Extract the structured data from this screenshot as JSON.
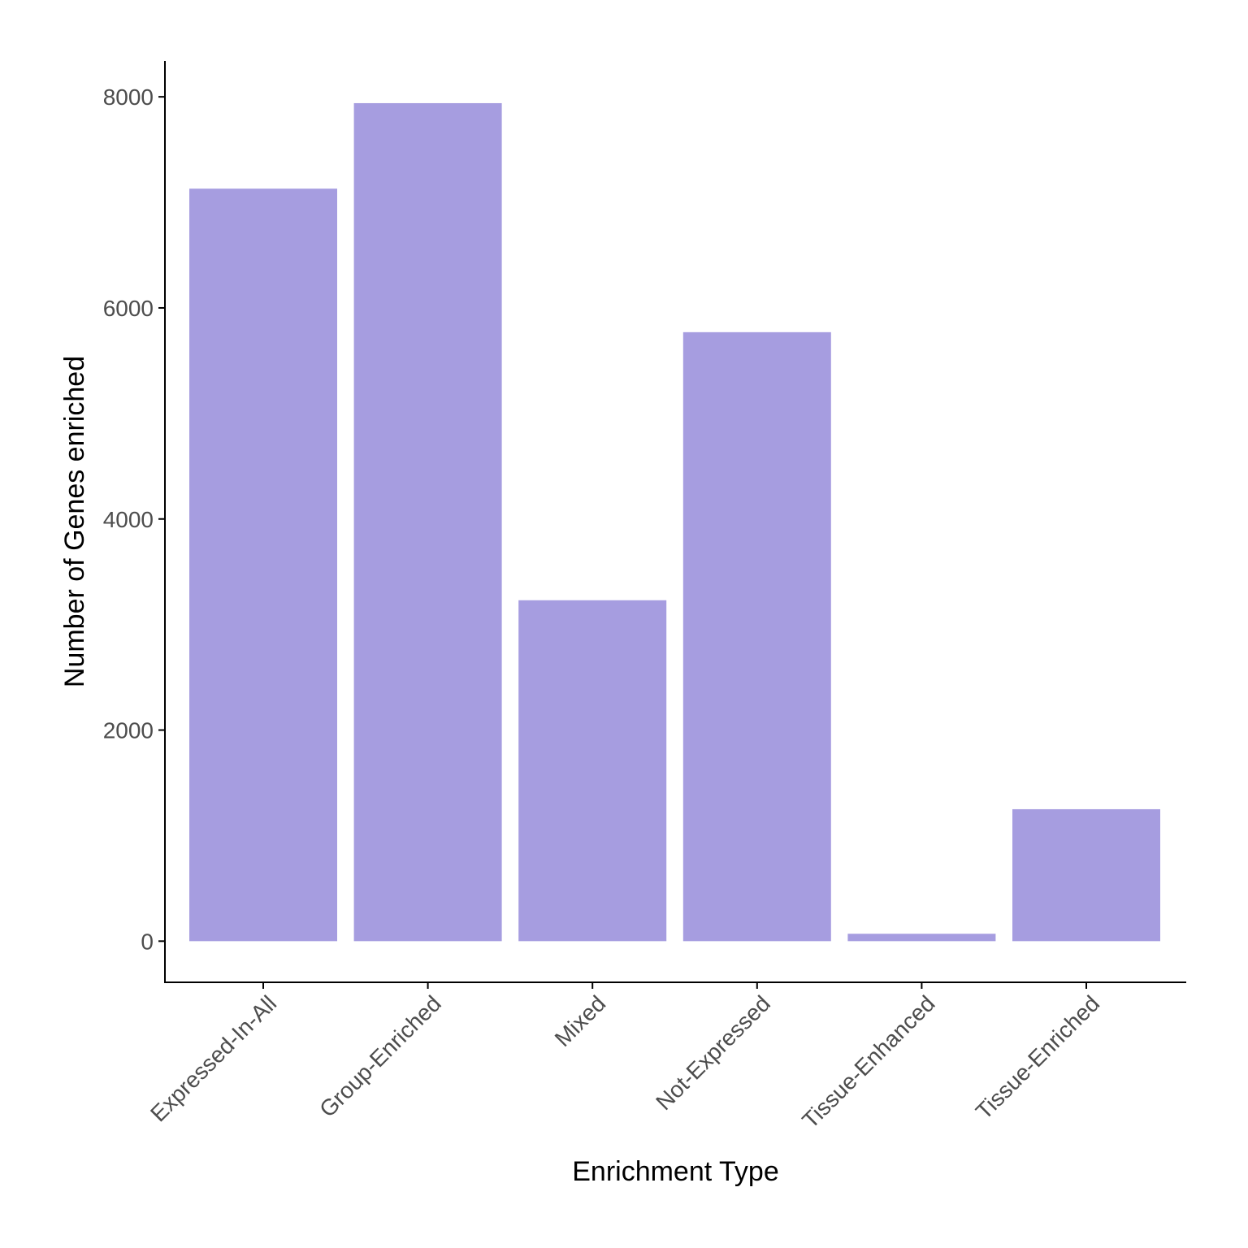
{
  "chart_data": {
    "type": "bar",
    "title": "",
    "xlabel": "Enrichment Type",
    "ylabel": "Number of Genes enriched",
    "categories": [
      "Expressed-In-All",
      "Group-Enriched",
      "Mixed",
      "Not-Expressed",
      "Tissue-Enhanced",
      "Tissue-Enriched"
    ],
    "values": [
      7130,
      7940,
      3230,
      5770,
      70,
      1250
    ],
    "ylim": [
      -390,
      8340
    ],
    "yticks": [
      0,
      2000,
      4000,
      6000,
      8000
    ],
    "ytick_labels": [
      "0",
      "2000",
      "4000",
      "6000",
      "8000"
    ],
    "bar_color": "#a69de0",
    "grid": false,
    "legend": "none"
  }
}
